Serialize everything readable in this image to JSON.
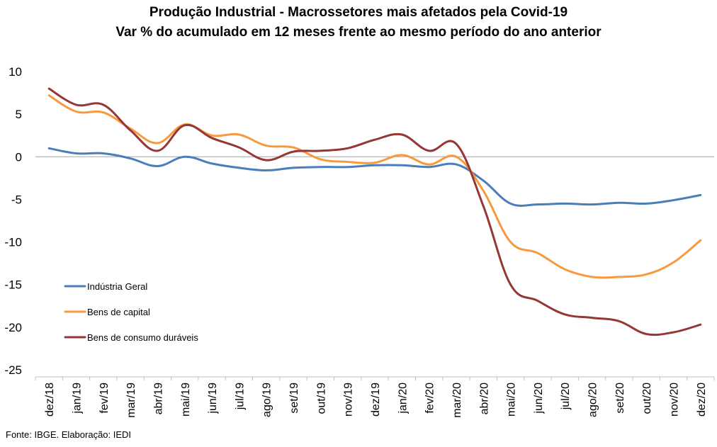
{
  "chart_data": {
    "type": "line",
    "title": "Produção Industrial - Macrossetores mais afetados pela Covid-19",
    "subtitle": "Var % do acumulado em 12 meses frente ao mesmo período do ano anterior",
    "xlabel": "",
    "ylabel": "",
    "categories": [
      "dez/18",
      "jan/19",
      "fev/19",
      "mar/19",
      "abr/19",
      "mai/19",
      "jun/19",
      "jul/19",
      "ago/19",
      "set/19",
      "out/19",
      "nov/19",
      "dez/19",
      "jan/20",
      "fev/20",
      "mar/20",
      "abr/20",
      "mai/20",
      "jun/20",
      "jul/20",
      "ago/20",
      "set/20",
      "out/20",
      "nov/20",
      "dez/20"
    ],
    "y_ticks": [
      "10",
      "5",
      "0",
      "-5",
      "-10",
      "-15",
      "-20",
      "-25"
    ],
    "ylim": [
      -25,
      10
    ],
    "zero_line": true,
    "grid": false,
    "legend_position": "left-bottom",
    "series": [
      {
        "name": "Indústria Geral",
        "color": "#4a7ebb",
        "values": [
          1.0,
          0.4,
          0.4,
          -0.2,
          -1.1,
          0.0,
          -0.8,
          -1.3,
          -1.6,
          -1.3,
          -1.2,
          -1.2,
          -1.0,
          -1.0,
          -1.2,
          -0.9,
          -2.8,
          -5.5,
          -5.6,
          -5.5,
          -5.6,
          -5.4,
          -5.5,
          -5.1,
          -4.5
        ]
      },
      {
        "name": "Bens de capital",
        "color": "#f79a3e",
        "values": [
          7.2,
          5.3,
          5.2,
          3.3,
          1.6,
          3.8,
          2.5,
          2.6,
          1.3,
          1.1,
          -0.3,
          -0.6,
          -0.7,
          0.2,
          -0.9,
          0.0,
          -4.0,
          -10.0,
          -11.3,
          -13.2,
          -14.1,
          -14.1,
          -13.8,
          -12.4,
          -9.8
        ]
      },
      {
        "name": "Bens de consumo duráveis",
        "color": "#953735",
        "values": [
          8.0,
          6.1,
          6.1,
          3.1,
          0.7,
          3.7,
          2.2,
          1.1,
          -0.4,
          0.6,
          0.7,
          1.0,
          2.0,
          2.6,
          0.7,
          1.5,
          -5.8,
          -15.0,
          -16.9,
          -18.5,
          -18.9,
          -19.3,
          -20.8,
          -20.6,
          -19.7
        ]
      }
    ]
  },
  "footer": "Fonte: IBGE. Elaboração: IEDI"
}
